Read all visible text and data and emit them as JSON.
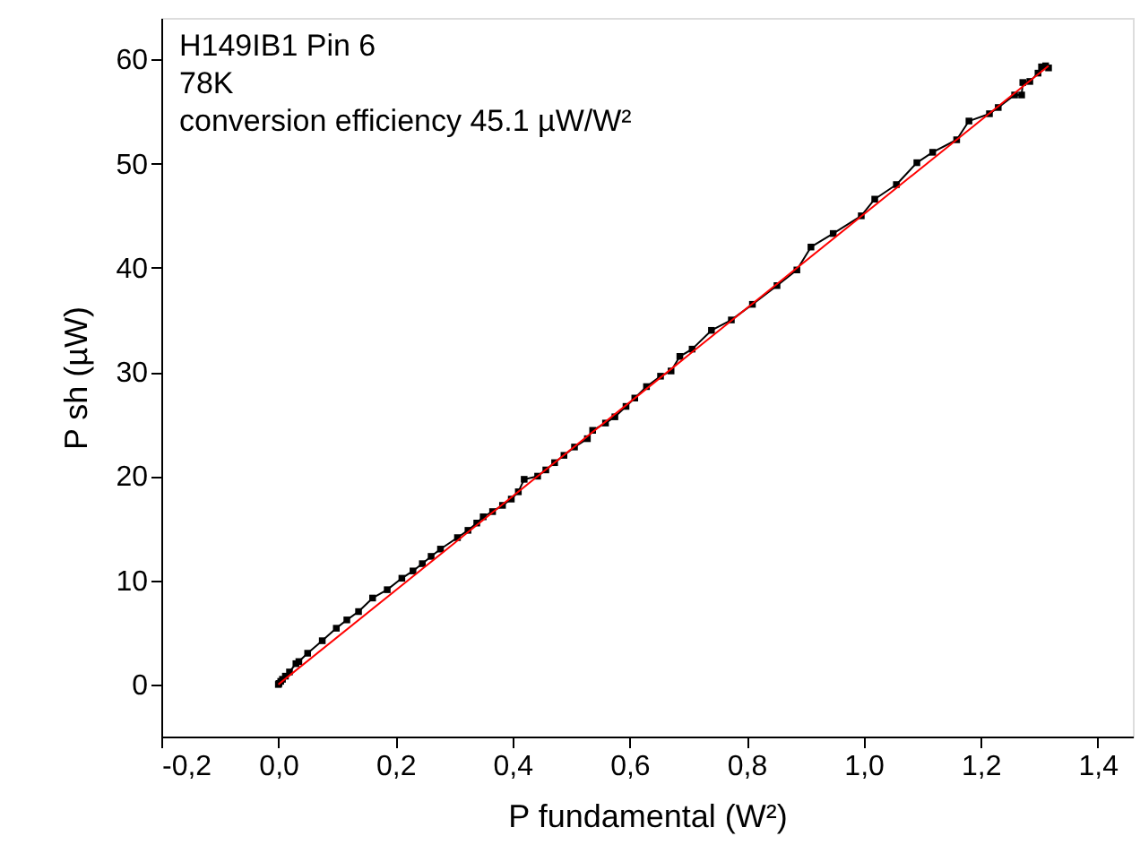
{
  "chart_data": {
    "type": "line",
    "xlabel": "P fundamental (W²)",
    "ylabel": "P sh (µW)",
    "annotations": [
      "H149IB1 Pin 6",
      "78K",
      "conversion efficiency 45.1 µW/W²"
    ],
    "xlim": [
      -0.2,
      1.46
    ],
    "ylim": [
      -5,
      64
    ],
    "xticks": [
      {
        "value": -0.2,
        "label": "-0,2"
      },
      {
        "value": 0,
        "label": "0,0"
      },
      {
        "value": 0.2,
        "label": "0,2"
      },
      {
        "value": 0.4,
        "label": "0,4"
      },
      {
        "value": 0.6,
        "label": "0,6"
      },
      {
        "value": 0.8,
        "label": "0,8"
      },
      {
        "value": 1.0,
        "label": "1,0"
      },
      {
        "value": 1.2,
        "label": "1,2"
      },
      {
        "value": 1.4,
        "label": "1,4"
      }
    ],
    "yticks": [
      0,
      10,
      20,
      30,
      40,
      50,
      60
    ],
    "grid": false,
    "series": [
      {
        "marker": "square",
        "line_style": "solid",
        "color": "#000000",
        "x": [
          0.0,
          0.001,
          0.004,
          0.007,
          0.012,
          0.019,
          0.03,
          0.035,
          0.05,
          0.075,
          0.099,
          0.117,
          0.137,
          0.161,
          0.186,
          0.211,
          0.23,
          0.246,
          0.261,
          0.277,
          0.306,
          0.324,
          0.339,
          0.35,
          0.366,
          0.383,
          0.398,
          0.41,
          0.42,
          0.443,
          0.457,
          0.472,
          0.488,
          0.506,
          0.528,
          0.537,
          0.559,
          0.575,
          0.594,
          0.609,
          0.629,
          0.653,
          0.671,
          0.686,
          0.707,
          0.74,
          0.774,
          0.81,
          0.852,
          0.886,
          0.91,
          0.948,
          0.996,
          1.019,
          1.056,
          1.091,
          1.118,
          1.159,
          1.18,
          1.215,
          1.23,
          1.258,
          1.27,
          1.272,
          1.284,
          1.298,
          1.304,
          1.311,
          1.316
        ],
        "values": [
          0.0,
          0.1,
          0.3,
          0.5,
          0.8,
          1.2,
          2.0,
          2.2,
          3.0,
          4.2,
          5.4,
          6.2,
          7.0,
          8.3,
          9.1,
          10.2,
          10.9,
          11.6,
          12.3,
          13.0,
          14.1,
          14.8,
          15.5,
          16.1,
          16.6,
          17.2,
          17.8,
          18.5,
          19.7,
          20.0,
          20.6,
          21.3,
          22.0,
          22.8,
          23.6,
          24.4,
          25.1,
          25.7,
          26.7,
          27.5,
          28.6,
          29.6,
          30.1,
          31.5,
          32.2,
          34.0,
          35.0,
          36.5,
          38.3,
          39.8,
          42.0,
          43.3,
          45.0,
          46.6,
          48.0,
          50.1,
          51.1,
          52.3,
          54.1,
          54.8,
          55.4,
          56.6,
          56.6,
          57.8,
          57.9,
          58.7,
          59.3,
          59.4,
          59.2
        ]
      },
      {
        "marker": "none",
        "line_style": "solid",
        "color": "#ff0000",
        "x": [
          0.0,
          1.316
        ],
        "values": [
          0.0,
          59.4
        ]
      }
    ]
  }
}
